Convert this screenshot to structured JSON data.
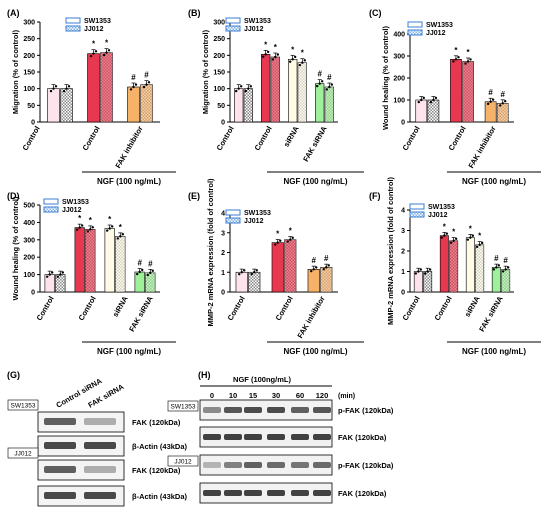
{
  "charts": [
    {
      "type": "bar",
      "panel": "(A)",
      "ylabel": "Migration (% of control)",
      "ylim": [
        0,
        300
      ],
      "yticks": [
        0,
        50,
        100,
        150,
        200,
        250,
        300
      ],
      "categories": [
        "Control",
        "Control",
        "FAK inhibitor"
      ],
      "legend": [
        "SW1353",
        "JJ012"
      ],
      "values": [
        [
          100,
          100
        ],
        [
          205,
          208
        ],
        [
          105,
          112
        ]
      ],
      "marks": [
        [
          "",
          ""
        ],
        [
          "*",
          "*"
        ],
        [
          "#",
          "#"
        ]
      ],
      "bracket_label": "NGF (100 ng/mL)",
      "bracket_from": 1,
      "bracket_to": 2
    },
    {
      "type": "bar",
      "panel": "(B)",
      "ylabel": "Migration (% of control)",
      "ylim": [
        0,
        300
      ],
      "yticks": [
        0,
        50,
        100,
        150,
        200,
        250,
        300
      ],
      "categories": [
        "Control",
        "Control",
        "siRNA",
        "FAK siRNA"
      ],
      "legend": [
        "SW1353",
        "JJ012"
      ],
      "values": [
        [
          100,
          100
        ],
        [
          203,
          195
        ],
        [
          188,
          178
        ],
        [
          115,
          105
        ]
      ],
      "marks": [
        [
          "",
          ""
        ],
        [
          "*",
          "*"
        ],
        [
          "*",
          "*"
        ],
        [
          "#",
          "#"
        ]
      ],
      "bracket_label": "NGF (100 ng/mL)",
      "bracket_from": 1,
      "bracket_to": 3
    },
    {
      "type": "bar",
      "panel": "(C)",
      "ylabel": "Wound healing (% of control)",
      "ylim": [
        0,
        400
      ],
      "yticks": [
        0,
        100,
        200,
        300,
        400
      ],
      "categories": [
        "Control",
        "Control",
        "FAK inhibitor"
      ],
      "legend": [
        "SW1353",
        "JJ012"
      ],
      "values": [
        [
          100,
          100
        ],
        [
          285,
          275
        ],
        [
          92,
          85
        ]
      ],
      "marks": [
        [
          "",
          ""
        ],
        [
          "*",
          "*"
        ],
        [
          "#",
          "#"
        ]
      ],
      "bracket_label": "NGF (100 ng/mL)",
      "bracket_from": 1,
      "bracket_to": 2
    },
    {
      "type": "bar",
      "panel": "(D)",
      "ylabel": "Wound healing (% of control)",
      "ylim": [
        0,
        500
      ],
      "yticks": [
        0,
        100,
        200,
        300,
        400,
        500
      ],
      "categories": [
        "Control",
        "Control",
        "siRNA",
        "FAK siRNA"
      ],
      "legend": [
        "SW1353",
        "JJ012"
      ],
      "values": [
        [
          100,
          100
        ],
        [
          370,
          360
        ],
        [
          365,
          320
        ],
        [
          115,
          110
        ]
      ],
      "marks": [
        [
          "",
          ""
        ],
        [
          "*",
          "*"
        ],
        [
          "*",
          "*"
        ],
        [
          "#",
          "#"
        ]
      ],
      "bracket_label": "NGF (100 ng/mL)",
      "bracket_from": 1,
      "bracket_to": 3
    },
    {
      "type": "bar",
      "panel": "(E)",
      "ylabel": "MMP-2 mRNA expression (fold of control)",
      "ylim": [
        0,
        4
      ],
      "yticks": [
        0,
        1,
        2,
        3,
        4
      ],
      "categories": [
        "Control",
        "Control",
        "FAK inhibitor"
      ],
      "legend": [
        "SW1353",
        "JJ012"
      ],
      "values": [
        [
          1.0,
          1.0
        ],
        [
          2.5,
          2.65
        ],
        [
          1.15,
          1.25
        ]
      ],
      "marks": [
        [
          "",
          ""
        ],
        [
          "*",
          "*"
        ],
        [
          "#",
          "#"
        ]
      ],
      "bracket_label": "NGF (100 ng/mL)",
      "bracket_from": 1,
      "bracket_to": 2
    },
    {
      "type": "bar",
      "panel": "(F)",
      "ylabel": "MMP-2 mRNA expression (fold of control)",
      "ylim": [
        0,
        4
      ],
      "yticks": [
        0,
        1,
        2,
        3,
        4
      ],
      "categories": [
        "Control",
        "Control",
        "siRNA",
        "FAK siRNA"
      ],
      "legend": [
        "SW1353",
        "JJ012"
      ],
      "values": [
        [
          1.0,
          1.0
        ],
        [
          2.75,
          2.5
        ],
        [
          2.65,
          2.3
        ],
        [
          1.2,
          1.1
        ]
      ],
      "marks": [
        [
          "",
          ""
        ],
        [
          "*",
          "*"
        ],
        [
          "*",
          "*"
        ],
        [
          "#",
          "#"
        ]
      ],
      "bracket_label": "NGF (100 ng/mL)",
      "bracket_from": 1,
      "bracket_to": 3
    }
  ],
  "blots": {
    "g": {
      "panel": "(G)",
      "lanes": [
        "Control siRNA",
        "FAK siRNA"
      ],
      "rows": [
        {
          "cell": "SW1353",
          "label": "FAK (120kDa)"
        },
        {
          "cell": "",
          "label": "β-Actin (43kDa)"
        },
        {
          "cell": "JJ012",
          "label": "FAK (120kDa)"
        },
        {
          "cell": "",
          "label": "β-Actin (43kDa)"
        }
      ]
    },
    "h": {
      "panel": "(H)",
      "treatment": "NGF (100ng/mL)",
      "unit": "(min)",
      "times": [
        "0",
        "10",
        "15",
        "30",
        "60",
        "120"
      ],
      "rows": [
        {
          "cell": "SW1353",
          "label": "p-FAK (120kDa)"
        },
        {
          "cell": "",
          "label": "FAK (120kDa)"
        },
        {
          "cell": "JJ012",
          "label": "p-FAK (120kDa)"
        },
        {
          "cell": "",
          "label": "FAK (120kDa)"
        }
      ]
    }
  }
}
